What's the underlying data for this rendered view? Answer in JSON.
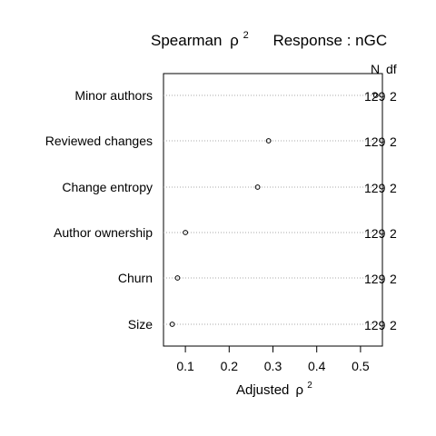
{
  "chart_data": {
    "type": "dotchart",
    "title_main": "Spearman",
    "title_rho": "ρ",
    "title_exp": "2",
    "title_response": "Response : nGC",
    "xlabel_main": "Adjusted",
    "xlabel_rho": "ρ",
    "xlabel_exp": "2",
    "col_n_label": "N",
    "col_df_label": "df",
    "xlim": [
      0.05,
      0.55
    ],
    "xticks": [
      0.1,
      0.2,
      0.3,
      0.4,
      0.5
    ],
    "xtick_labels": [
      "0.1",
      "0.2",
      "0.3",
      "0.4",
      "0.5"
    ],
    "grid": "dotted-row-lines",
    "rows": [
      {
        "label": "Minor authors",
        "value": 0.535,
        "n": "129",
        "df": "2"
      },
      {
        "label": "Reviewed changes",
        "value": 0.29,
        "n": "129",
        "df": "2"
      },
      {
        "label": "Change entropy",
        "value": 0.265,
        "n": "129",
        "df": "2"
      },
      {
        "label": "Author ownership",
        "value": 0.1,
        "n": "129",
        "df": "2"
      },
      {
        "label": "Churn",
        "value": 0.082,
        "n": "129",
        "df": "2"
      },
      {
        "label": "Size",
        "value": 0.07,
        "n": "129",
        "df": "2"
      }
    ]
  }
}
